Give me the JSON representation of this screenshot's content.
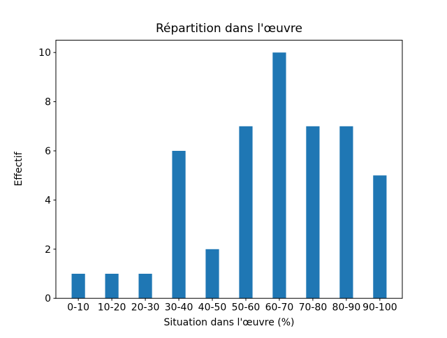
{
  "chart_data": {
    "type": "bar",
    "title": "Répartition dans l'œuvre",
    "xlabel": "Situation dans l'œuvre (%)",
    "ylabel": "Effectif",
    "categories": [
      "0-10",
      "10-20",
      "20-30",
      "30-40",
      "40-50",
      "50-60",
      "60-70",
      "70-80",
      "80-90",
      "90-100"
    ],
    "values": [
      1,
      1,
      1,
      6,
      2,
      7,
      10,
      7,
      7,
      5
    ],
    "yticks": [
      0,
      2,
      4,
      6,
      8,
      10
    ],
    "ylim": [
      0,
      10.5
    ],
    "bar_color": "#1f77b4",
    "bar_width_fraction": 0.4,
    "grid": false,
    "legend": null,
    "axis_color": "#000000",
    "background_color": "#ffffff"
  }
}
